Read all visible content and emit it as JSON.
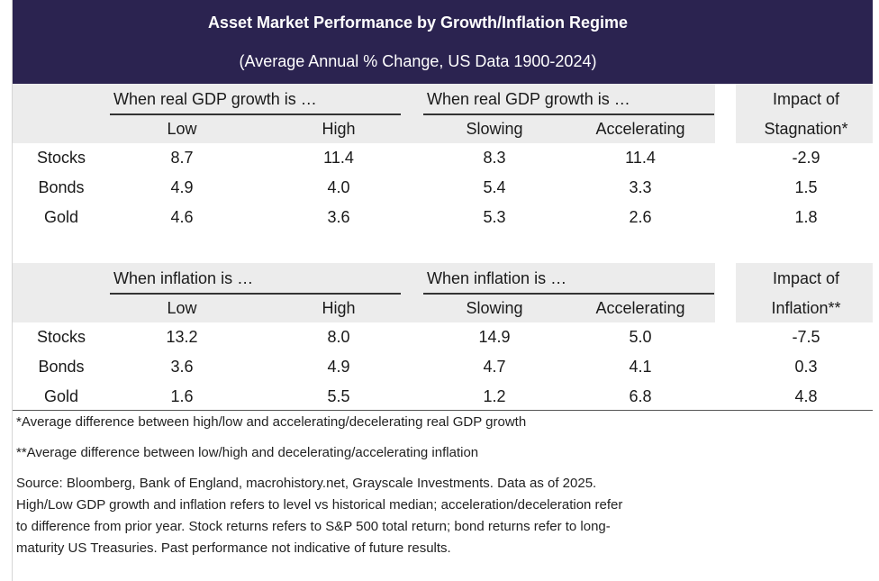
{
  "header": {
    "title": "Asset Market Performance by Growth/Inflation Regime",
    "subtitle": "(Average Annual % Change, US Data 1900-2024)"
  },
  "chart_data": {
    "type": "table",
    "title": "Asset Market Performance by Growth/Inflation Regime",
    "subtitle": "(Average Annual % Change, US Data 1900-2024)",
    "sections": [
      {
        "group_left": "When real GDP growth is …",
        "group_right": "When real GDP growth is …",
        "columns": [
          "Low",
          "High",
          "Slowing",
          "Accelerating"
        ],
        "impact_label_1": "Impact of",
        "impact_label_2": "Stagnation*",
        "rows": [
          {
            "asset": "Stocks",
            "values": [
              "8.7",
              "11.4",
              "8.3",
              "11.4"
            ],
            "impact": "-2.9"
          },
          {
            "asset": "Bonds",
            "values": [
              "4.9",
              "4.0",
              "5.4",
              "3.3"
            ],
            "impact": "1.5"
          },
          {
            "asset": "Gold",
            "values": [
              "4.6",
              "3.6",
              "5.3",
              "2.6"
            ],
            "impact": "1.8"
          }
        ]
      },
      {
        "group_left": "When inflation is …",
        "group_right": "When inflation is …",
        "columns": [
          "Low",
          "High",
          "Slowing",
          "Accelerating"
        ],
        "impact_label_1": "Impact of",
        "impact_label_2": "Inflation**",
        "rows": [
          {
            "asset": "Stocks",
            "values": [
              "13.2",
              "8.0",
              "14.9",
              "5.0"
            ],
            "impact": "-7.5"
          },
          {
            "asset": "Bonds",
            "values": [
              "3.6",
              "4.9",
              "4.7",
              "4.1"
            ],
            "impact": "0.3"
          },
          {
            "asset": "Gold",
            "values": [
              "1.6",
              "5.5",
              "1.2",
              "6.8"
            ],
            "impact": "4.8"
          }
        ]
      }
    ]
  },
  "notes": {
    "note1": "*Average difference between high/low and accelerating/decelerating real GDP growth",
    "note2": "**Average difference between low/high and decelerating/accelerating inflation",
    "source_1": "Source: Bloomberg, Bank of England, macrohistory.net, Grayscale Investments. Data as of 2025.",
    "source_2": "High/Low GDP growth and inflation refers to level vs historical median; acceleration/deceleration refer",
    "source_3": "to difference from prior year. Stock returns refers to S&P 500 total return; bond returns refer to long-",
    "source_4": "maturity US Treasuries. Past performance not indicative of future results."
  }
}
